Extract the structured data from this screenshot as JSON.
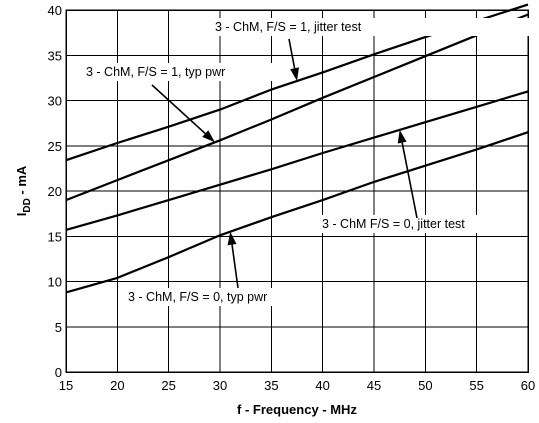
{
  "chart_data": {
    "type": "line",
    "title": "",
    "xlabel": "f - Frequency - MHz",
    "ylabel_main": "I",
    "ylabel_sub": "DD",
    "ylabel_suffix": " - mA",
    "xlim": [
      15,
      60
    ],
    "ylim": [
      0,
      40
    ],
    "grid": true,
    "x_ticks": [
      15,
      20,
      25,
      30,
      35,
      40,
      45,
      50,
      55,
      60
    ],
    "y_ticks": [
      0,
      5,
      10,
      15,
      20,
      25,
      30,
      35,
      40
    ],
    "series": [
      {
        "name": "3 - ChM, F/S = 1, jitter test",
        "x": [
          15,
          20,
          25,
          30,
          35,
          40,
          45,
          50,
          55,
          60
        ],
        "y": [
          23.4,
          25.3,
          27.1,
          29.0,
          31.2,
          33.1,
          35.1,
          37.0,
          38.8,
          40.6
        ]
      },
      {
        "name": "3 - ChM, F/S = 1, typ pwr",
        "x": [
          15,
          20,
          25,
          30,
          35,
          40,
          45,
          50,
          55,
          60
        ],
        "y": [
          19.0,
          21.2,
          23.4,
          25.6,
          27.9,
          30.3,
          32.6,
          34.9,
          37.2,
          39.5
        ]
      },
      {
        "name": "3 - ChM F/S = 0, jitter test",
        "x": [
          15,
          20,
          25,
          30,
          35,
          40,
          45,
          50,
          55,
          60
        ],
        "y": [
          15.7,
          17.3,
          19.0,
          20.7,
          22.4,
          24.2,
          25.9,
          27.6,
          29.3,
          31.0
        ]
      },
      {
        "name": "3 - ChM, F/S = 0, typ pwr",
        "x": [
          15,
          20,
          25,
          30,
          35,
          40,
          45,
          50,
          55,
          60
        ],
        "y": [
          8.8,
          10.4,
          12.7,
          15.1,
          17.1,
          19.0,
          21.0,
          22.8,
          24.6,
          26.5
        ]
      }
    ],
    "annotations": [
      {
        "text": "3 - ChM, F/S = 1, jitter test",
        "series": 0,
        "arrow_at_x": 37.5
      },
      {
        "text": "3 - ChM, F/S = 1, typ pwr",
        "series": 1,
        "arrow_at_x": 29.5
      },
      {
        "text": "3 - ChM F/S = 0, jitter test",
        "series": 2,
        "arrow_at_x": 47.5
      },
      {
        "text": "3 - ChM, F/S = 0, typ pwr",
        "series": 3,
        "arrow_at_x": 31.0
      }
    ]
  }
}
